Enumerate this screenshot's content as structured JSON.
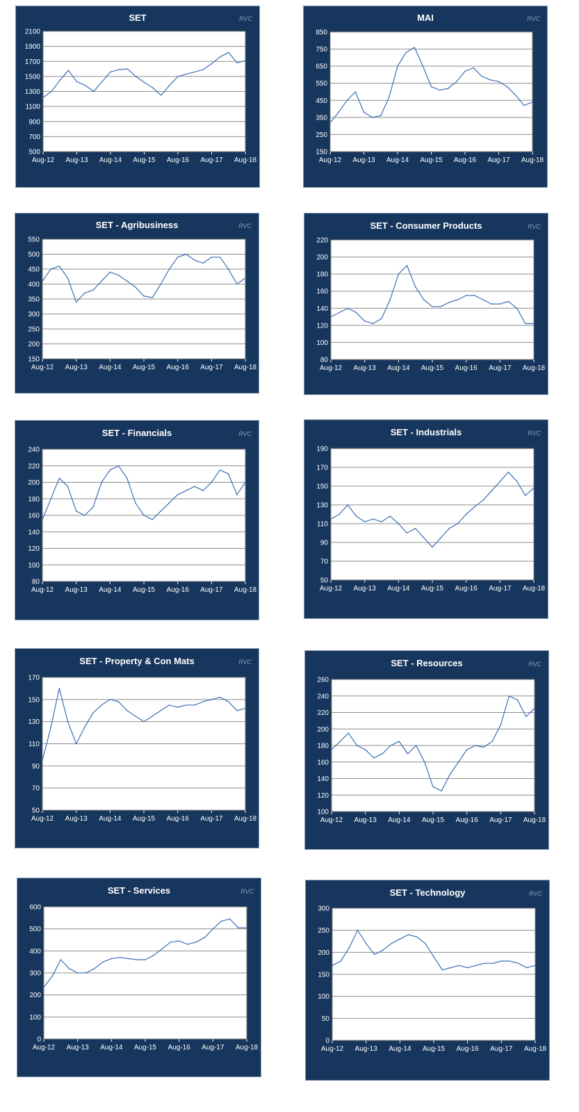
{
  "brand": {
    "panel_bg": "#17365d",
    "plot_bg": "#ffffff",
    "line_color": "#3a6fb5",
    "grid_color": "#8c8c8c"
  },
  "watermark": "RVC",
  "x_tick_labels": [
    "Aug-12",
    "Aug-13",
    "Aug-14",
    "Aug-15",
    "Aug-16",
    "Aug-17",
    "Aug-18"
  ],
  "chart_data": [
    {
      "type": "line",
      "title": "SET",
      "xlabel": "",
      "ylabel": "",
      "ylim": [
        500,
        2100
      ],
      "yticks": [
        500,
        700,
        900,
        1100,
        1300,
        1500,
        1700,
        1900,
        2100
      ],
      "x": [
        "Aug-12",
        "Nov-12",
        "Feb-13",
        "May-13",
        "Aug-13",
        "Nov-13",
        "Feb-14",
        "May-14",
        "Aug-14",
        "Nov-14",
        "Feb-15",
        "May-15",
        "Aug-15",
        "Nov-15",
        "Feb-16",
        "May-16",
        "Aug-16",
        "Nov-16",
        "Feb-17",
        "May-17",
        "Aug-17",
        "Nov-17",
        "Feb-18",
        "May-18",
        "Aug-18"
      ],
      "values": [
        1220,
        1300,
        1450,
        1580,
        1430,
        1380,
        1300,
        1430,
        1560,
        1590,
        1600,
        1500,
        1420,
        1350,
        1250,
        1380,
        1500,
        1530,
        1560,
        1590,
        1670,
        1760,
        1820,
        1680,
        1710
      ],
      "grid": true
    },
    {
      "type": "line",
      "title": "MAI",
      "xlabel": "",
      "ylabel": "",
      "ylim": [
        150,
        850
      ],
      "yticks": [
        150,
        250,
        350,
        450,
        550,
        650,
        750,
        850
      ],
      "x": [
        "Aug-12",
        "Nov-12",
        "Feb-13",
        "May-13",
        "Aug-13",
        "Nov-13",
        "Feb-14",
        "May-14",
        "Aug-14",
        "Nov-14",
        "Feb-15",
        "May-15",
        "Aug-15",
        "Nov-15",
        "Feb-16",
        "May-16",
        "Aug-16",
        "Nov-16",
        "Feb-17",
        "May-17",
        "Aug-17",
        "Nov-17",
        "Feb-18",
        "May-18",
        "Aug-18"
      ],
      "values": [
        320,
        380,
        450,
        500,
        380,
        350,
        360,
        470,
        650,
        730,
        760,
        650,
        530,
        510,
        520,
        560,
        620,
        640,
        590,
        570,
        560,
        530,
        480,
        420,
        440
      ],
      "grid": true
    },
    {
      "type": "line",
      "title": "SET - Agribusiness",
      "xlabel": "",
      "ylabel": "",
      "ylim": [
        150,
        550
      ],
      "yticks": [
        150,
        200,
        250,
        300,
        350,
        400,
        450,
        500,
        550
      ],
      "x": [
        "Aug-12",
        "Nov-12",
        "Feb-13",
        "May-13",
        "Aug-13",
        "Nov-13",
        "Feb-14",
        "May-14",
        "Aug-14",
        "Nov-14",
        "Feb-15",
        "May-15",
        "Aug-15",
        "Nov-15",
        "Feb-16",
        "May-16",
        "Aug-16",
        "Nov-16",
        "Feb-17",
        "May-17",
        "Aug-17",
        "Nov-17",
        "Feb-18",
        "May-18",
        "Aug-18"
      ],
      "values": [
        410,
        450,
        460,
        420,
        340,
        370,
        380,
        410,
        440,
        430,
        410,
        390,
        360,
        355,
        400,
        450,
        490,
        500,
        480,
        470,
        490,
        490,
        450,
        400,
        420
      ],
      "grid": true
    },
    {
      "type": "line",
      "title": "SET - Consumer Products",
      "xlabel": "",
      "ylabel": "",
      "ylim": [
        80,
        220
      ],
      "yticks": [
        80,
        100,
        120,
        140,
        160,
        180,
        200,
        220
      ],
      "x": [
        "Aug-12",
        "Nov-12",
        "Feb-13",
        "May-13",
        "Aug-13",
        "Nov-13",
        "Feb-14",
        "May-14",
        "Aug-14",
        "Nov-14",
        "Feb-15",
        "May-15",
        "Aug-15",
        "Nov-15",
        "Feb-16",
        "May-16",
        "Aug-16",
        "Nov-16",
        "Feb-17",
        "May-17",
        "Aug-17",
        "Nov-17",
        "Feb-18",
        "May-18",
        "Aug-18"
      ],
      "values": [
        130,
        135,
        140,
        135,
        125,
        122,
        128,
        150,
        180,
        190,
        165,
        150,
        142,
        142,
        147,
        150,
        155,
        155,
        150,
        145,
        145,
        148,
        140,
        122,
        122
      ],
      "grid": true
    },
    {
      "type": "line",
      "title": "SET - Financials",
      "xlabel": "",
      "ylabel": "",
      "ylim": [
        80,
        240
      ],
      "yticks": [
        80,
        100,
        120,
        140,
        160,
        180,
        200,
        220,
        240
      ],
      "x": [
        "Aug-12",
        "Nov-12",
        "Feb-13",
        "May-13",
        "Aug-13",
        "Nov-13",
        "Feb-14",
        "May-14",
        "Aug-14",
        "Nov-14",
        "Feb-15",
        "May-15",
        "Aug-15",
        "Nov-15",
        "Feb-16",
        "May-16",
        "Aug-16",
        "Nov-16",
        "Feb-17",
        "May-17",
        "Aug-17",
        "Nov-17",
        "Feb-18",
        "May-18",
        "Aug-18"
      ],
      "values": [
        155,
        180,
        205,
        195,
        165,
        160,
        170,
        200,
        215,
        220,
        205,
        175,
        160,
        155,
        165,
        175,
        185,
        190,
        195,
        190,
        200,
        215,
        210,
        185,
        200
      ],
      "grid": true
    },
    {
      "type": "line",
      "title": "SET - Industrials",
      "xlabel": "",
      "ylabel": "",
      "ylim": [
        50,
        190
      ],
      "yticks": [
        50,
        70,
        90,
        110,
        130,
        150,
        170,
        190
      ],
      "x": [
        "Aug-12",
        "Nov-12",
        "Feb-13",
        "May-13",
        "Aug-13",
        "Nov-13",
        "Feb-14",
        "May-14",
        "Aug-14",
        "Nov-14",
        "Feb-15",
        "May-15",
        "Aug-15",
        "Nov-15",
        "Feb-16",
        "May-16",
        "Aug-16",
        "Nov-16",
        "Feb-17",
        "May-17",
        "Aug-17",
        "Nov-17",
        "Feb-18",
        "May-18",
        "Aug-18"
      ],
      "values": [
        115,
        120,
        130,
        118,
        112,
        115,
        112,
        118,
        110,
        100,
        105,
        95,
        85,
        95,
        105,
        110,
        120,
        128,
        135,
        145,
        155,
        165,
        155,
        140,
        148
      ],
      "grid": true
    },
    {
      "type": "line",
      "title": "SET - Property & Con Mats",
      "xlabel": "",
      "ylabel": "",
      "ylim": [
        50,
        170
      ],
      "yticks": [
        50,
        70,
        90,
        110,
        130,
        150,
        170
      ],
      "x": [
        "Aug-12",
        "Nov-12",
        "Feb-13",
        "May-13",
        "Aug-13",
        "Nov-13",
        "Feb-14",
        "May-14",
        "Aug-14",
        "Nov-14",
        "Feb-15",
        "May-15",
        "Aug-15",
        "Nov-15",
        "Feb-16",
        "May-16",
        "Aug-16",
        "Nov-16",
        "Feb-17",
        "May-17",
        "Aug-17",
        "Nov-17",
        "Feb-18",
        "May-18",
        "Aug-18"
      ],
      "values": [
        95,
        125,
        160,
        130,
        110,
        125,
        138,
        145,
        150,
        148,
        140,
        135,
        130,
        135,
        140,
        145,
        143,
        145,
        145,
        148,
        150,
        152,
        148,
        140,
        142
      ],
      "grid": true
    },
    {
      "type": "line",
      "title": "SET - Resources",
      "xlabel": "",
      "ylabel": "",
      "ylim": [
        100,
        260
      ],
      "yticks": [
        100,
        120,
        140,
        160,
        180,
        200,
        220,
        240,
        260
      ],
      "x": [
        "Aug-12",
        "Nov-12",
        "Feb-13",
        "May-13",
        "Aug-13",
        "Nov-13",
        "Feb-14",
        "May-14",
        "Aug-14",
        "Nov-14",
        "Feb-15",
        "May-15",
        "Aug-15",
        "Nov-15",
        "Feb-16",
        "May-16",
        "Aug-16",
        "Nov-16",
        "Feb-17",
        "May-17",
        "Aug-17",
        "Nov-17",
        "Feb-18",
        "May-18",
        "Aug-18"
      ],
      "values": [
        175,
        185,
        195,
        180,
        175,
        165,
        170,
        180,
        185,
        170,
        180,
        160,
        130,
        125,
        145,
        160,
        175,
        180,
        178,
        185,
        205,
        240,
        235,
        215,
        225
      ],
      "grid": true
    },
    {
      "type": "line",
      "title": "SET - Services",
      "xlabel": "",
      "ylabel": "",
      "ylim": [
        0,
        600
      ],
      "yticks": [
        0,
        100,
        200,
        300,
        400,
        500,
        600
      ],
      "x": [
        "Aug-12",
        "Nov-12",
        "Feb-13",
        "May-13",
        "Aug-13",
        "Nov-13",
        "Feb-14",
        "May-14",
        "Aug-14",
        "Nov-14",
        "Feb-15",
        "May-15",
        "Aug-15",
        "Nov-15",
        "Feb-16",
        "May-16",
        "Aug-16",
        "Nov-16",
        "Feb-17",
        "May-17",
        "Aug-17",
        "Nov-17",
        "Feb-18",
        "May-18",
        "Aug-18"
      ],
      "values": [
        235,
        285,
        360,
        320,
        300,
        300,
        320,
        350,
        365,
        370,
        365,
        360,
        360,
        380,
        410,
        440,
        445,
        430,
        440,
        460,
        500,
        535,
        545,
        505,
        505
      ],
      "grid": true
    },
    {
      "type": "line",
      "title": "SET - Technology",
      "xlabel": "",
      "ylabel": "",
      "ylim": [
        0,
        300
      ],
      "yticks": [
        0,
        50,
        100,
        150,
        200,
        250,
        300
      ],
      "x": [
        "Aug-12",
        "Nov-12",
        "Feb-13",
        "May-13",
        "Aug-13",
        "Nov-13",
        "Feb-14",
        "May-14",
        "Aug-14",
        "Nov-14",
        "Feb-15",
        "May-15",
        "Aug-15",
        "Nov-15",
        "Feb-16",
        "May-16",
        "Aug-16",
        "Nov-16",
        "Feb-17",
        "May-17",
        "Aug-17",
        "Nov-17",
        "Feb-18",
        "May-18",
        "Aug-18"
      ],
      "values": [
        170,
        180,
        210,
        250,
        220,
        195,
        205,
        220,
        230,
        240,
        235,
        220,
        190,
        160,
        165,
        170,
        165,
        170,
        175,
        175,
        180,
        180,
        175,
        165,
        170
      ],
      "grid": true
    }
  ]
}
